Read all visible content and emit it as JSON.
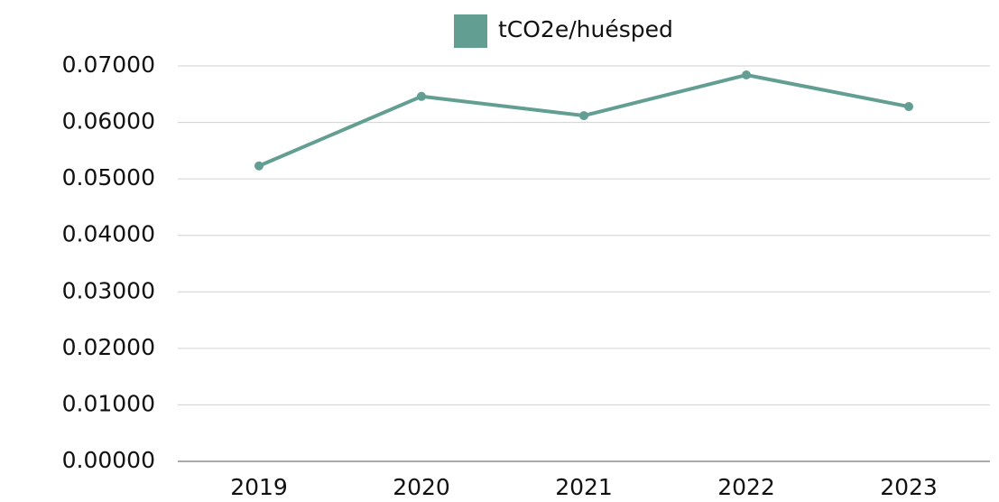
{
  "chart_data": {
    "type": "line",
    "categories": [
      "2019",
      "2020",
      "2021",
      "2022",
      "2023"
    ],
    "series": [
      {
        "name": "tCO2e/huésped",
        "color": "#639e92",
        "values": [
          0.0523,
          0.0646,
          0.0612,
          0.0684,
          0.0628
        ]
      }
    ],
    "ylim": [
      0,
      0.07
    ],
    "yticks": [
      {
        "value": 0,
        "label": "0.00000"
      },
      {
        "value": 0.01,
        "label": "0.01000"
      },
      {
        "value": 0.02,
        "label": "0.02000"
      },
      {
        "value": 0.03,
        "label": "0.03000"
      },
      {
        "value": 0.04,
        "label": "0.04000"
      },
      {
        "value": 0.05,
        "label": "0.05000"
      },
      {
        "value": 0.06,
        "label": "0.06000"
      },
      {
        "value": 0.07,
        "label": "0.07000"
      }
    ],
    "grid": true,
    "legend": "top"
  }
}
